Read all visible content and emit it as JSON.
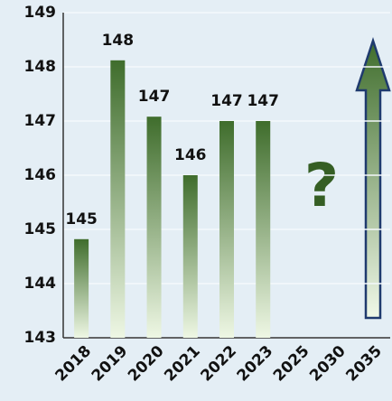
{
  "chart_data": {
    "type": "bar",
    "categories": [
      "2018",
      "2019",
      "2020",
      "2021",
      "2022",
      "2023",
      "2025",
      "2030",
      "2035"
    ],
    "values": [
      144.82,
      148.12,
      147.08,
      146.0,
      147.0,
      147.0,
      null,
      null,
      null
    ],
    "value_labels": [
      "145",
      "148",
      "147",
      "146",
      "147",
      "147",
      null,
      null,
      null
    ],
    "color": "#3f6d2c",
    "ylim": [
      143,
      149
    ],
    "yticks": [
      143,
      144,
      145,
      146,
      147,
      148,
      149
    ],
    "grid": true,
    "annotation": "?"
  }
}
